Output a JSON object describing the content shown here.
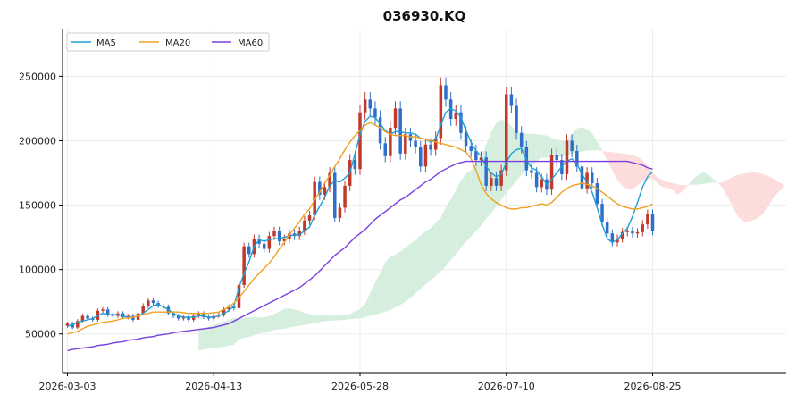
{
  "chart_data": {
    "type": "candlestick",
    "title": "036930.KQ",
    "xlabel": "",
    "ylabel": "",
    "ylim": [
      20000,
      287000
    ],
    "y_ticks": [
      50000,
      100000,
      150000,
      200000,
      250000
    ],
    "x_tick_labels": [
      {
        "label": "2026-03-03",
        "index": 0
      },
      {
        "label": "2026-04-13",
        "index": 29
      },
      {
        "label": "2026-05-28",
        "index": 58
      },
      {
        "label": "2026-07-10",
        "index": 87
      },
      {
        "label": "2026-08-25",
        "index": 116
      }
    ],
    "total_slots": 143,
    "grid": true,
    "legend_position": "top-left",
    "colors": {
      "up": "#c0392b",
      "down": "#2f6fc9",
      "ma5": "#1f9fd6",
      "ma20": "#f0a020",
      "ma60": "#7b3fe0",
      "cloud_bull": "#d5eedd",
      "cloud_bear": "#fddcdc",
      "grid": "#ececec",
      "axis": "#000000"
    },
    "series": [
      {
        "name": "MA5",
        "key": "ma5"
      },
      {
        "name": "MA20",
        "key": "ma20"
      },
      {
        "name": "MA60",
        "key": "ma60"
      }
    ],
    "close": [
      58000,
      55000,
      60000,
      64000,
      62000,
      61000,
      68000,
      69000,
      65000,
      64000,
      66000,
      63000,
      64000,
      61000,
      66000,
      72000,
      76000,
      74000,
      72000,
      71000,
      66000,
      64000,
      62000,
      63000,
      61000,
      64000,
      66000,
      63000,
      62000,
      64000,
      65000,
      69000,
      71000,
      70000,
      88000,
      118000,
      112000,
      124000,
      120000,
      116000,
      126000,
      130000,
      122000,
      124000,
      128000,
      126000,
      130000,
      138000,
      142000,
      168000,
      158000,
      164000,
      175000,
      140000,
      148000,
      165000,
      185000,
      178000,
      222000,
      232000,
      225000,
      218000,
      198000,
      188000,
      210000,
      225000,
      190000,
      205000,
      200000,
      195000,
      180000,
      197000,
      193000,
      202000,
      243000,
      232000,
      217000,
      222000,
      206000,
      196000,
      192000,
      185000,
      187000,
      165000,
      171000,
      165000,
      177000,
      236000,
      227000,
      206000,
      195000,
      177000,
      175000,
      164000,
      170000,
      162000,
      189000,
      185000,
      174000,
      200000,
      192000,
      180000,
      163000,
      175000,
      167000,
      151000,
      137000,
      128000,
      121000,
      124000,
      129000,
      130000,
      128000,
      129000,
      135000,
      143000,
      130000
    ],
    "ma5": [
      56000,
      57000,
      59000,
      60000,
      61000,
      62000,
      64000,
      66000,
      65000,
      65000,
      65000,
      64000,
      63000,
      63000,
      64000,
      66000,
      69000,
      72000,
      73000,
      71000,
      69000,
      66000,
      64000,
      63000,
      63000,
      63000,
      64000,
      64000,
      63000,
      63000,
      64000,
      66000,
      68000,
      72000,
      86000,
      97000,
      106000,
      118000,
      123000,
      122000,
      123000,
      124000,
      124000,
      125000,
      126000,
      127000,
      127000,
      130000,
      133000,
      142000,
      149000,
      156000,
      165000,
      169000,
      168000,
      171000,
      175000,
      190000,
      205000,
      215000,
      219000,
      218000,
      213000,
      208000,
      205000,
      207000,
      207000,
      206000,
      206000,
      205000,
      202000,
      201000,
      199000,
      201000,
      212000,
      222000,
      225000,
      223000,
      218000,
      208000,
      199000,
      192000,
      188000,
      180000,
      175000,
      172000,
      174000,
      183000,
      190000,
      193000,
      194000,
      185000,
      179000,
      177000,
      172000,
      166000,
      170000,
      175000,
      180000,
      184000,
      186000,
      182000,
      174000,
      168000,
      160000,
      148000,
      135000,
      124000,
      121000,
      123000,
      128000,
      132000,
      141000,
      152000,
      164000,
      172000,
      176000
    ],
    "ma20": [
      50000,
      51000,
      52000,
      54000,
      56000,
      57000,
      58000,
      59000,
      59500,
      60000,
      61000,
      62000,
      62500,
      63000,
      64000,
      65000,
      66000,
      67000,
      67000,
      67000,
      67000,
      67000,
      67000,
      66500,
      66000,
      66000,
      66000,
      66000,
      66000,
      66500,
      67000,
      69000,
      71000,
      74000,
      78000,
      83000,
      88000,
      93000,
      97000,
      101000,
      105000,
      110000,
      116000,
      121000,
      127000,
      132000,
      137000,
      143000,
      147000,
      154000,
      160000,
      167000,
      173000,
      180000,
      186000,
      193000,
      199000,
      204000,
      208000,
      212000,
      214000,
      212000,
      210000,
      207000,
      205000,
      204000,
      204000,
      204000,
      203000,
      203000,
      202000,
      201000,
      200000,
      199000,
      198000,
      197000,
      196000,
      195000,
      193000,
      191000,
      186000,
      177000,
      166000,
      159000,
      155000,
      152000,
      150000,
      148000,
      147000,
      147000,
      148000,
      148000,
      149000,
      150000,
      151000,
      150000,
      152000,
      156000,
      160000,
      163000,
      165000,
      166000,
      167000,
      166000,
      165000,
      163000,
      160000,
      157000,
      154000,
      151000,
      149000,
      148000,
      147000,
      147000,
      148000,
      149000,
      151000
    ],
    "ma60": [
      37000,
      38000,
      38500,
      39000,
      39500,
      40000,
      41000,
      41500,
      42000,
      43000,
      43500,
      44000,
      45000,
      45500,
      46000,
      47000,
      47500,
      48000,
      49000,
      49500,
      50000,
      51000,
      51500,
      52000,
      52500,
      53000,
      53500,
      54000,
      54500,
      55000,
      56000,
      57000,
      58000,
      60000,
      62000,
      64000,
      66000,
      68000,
      70000,
      72000,
      74000,
      76000,
      78000,
      80000,
      82000,
      84000,
      86000,
      89000,
      92000,
      95000,
      99000,
      103000,
      107000,
      111000,
      114000,
      117000,
      121000,
      125000,
      128000,
      131000,
      135000,
      139000,
      142000,
      145000,
      148000,
      151000,
      154000,
      156000,
      159000,
      162000,
      165000,
      168000,
      170000,
      173000,
      176000,
      178000,
      180000,
      182000,
      183000,
      184000,
      184000,
      184000,
      184000,
      184000,
      184000,
      184000,
      184000,
      184000,
      184000,
      184000,
      184000,
      184000,
      184000,
      184000,
      184000,
      184000,
      184000,
      184000,
      184000,
      184000,
      184000,
      184000,
      184000,
      184000,
      184000,
      184000,
      184000,
      184000,
      184000,
      184000,
      184000,
      184000,
      183000,
      182000,
      181000,
      179000,
      178000
    ]
  }
}
